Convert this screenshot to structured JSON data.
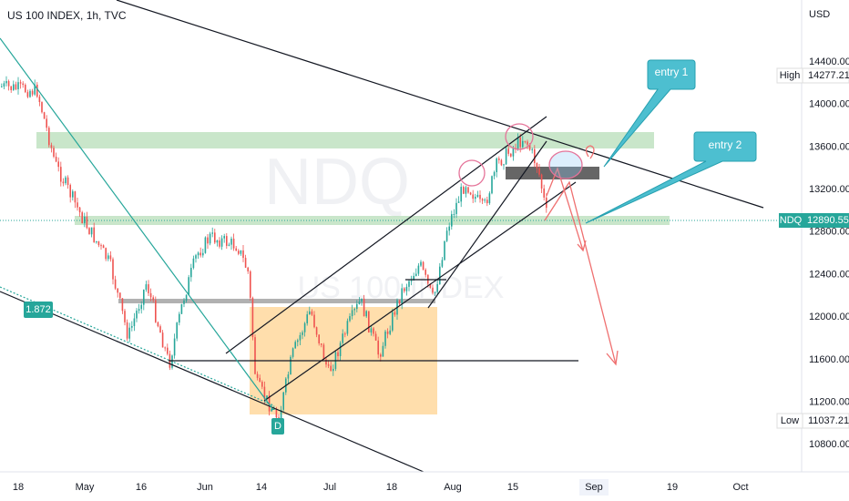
{
  "header": {
    "title": "US 100 INDEX, 1h, TVC"
  },
  "watermark": {
    "symbol": "NDQ",
    "name": "US 100 INDEX"
  },
  "price_axis": {
    "currency": "USD",
    "labels": [
      "14400.00",
      "14000.00",
      "13600.00",
      "13200.00",
      "12800.00",
      "12400.00",
      "12000.00",
      "11600.00",
      "11200.00",
      "10800.00"
    ],
    "high": {
      "label": "High",
      "value": "14277.21"
    },
    "low": {
      "label": "Low",
      "value": "11037.21"
    },
    "current": {
      "symbol": "NDQ",
      "value": "12890.55"
    }
  },
  "time_axis": {
    "labels": [
      "18",
      "May",
      "16",
      "Jun",
      "14",
      "Jul",
      "18",
      "Aug",
      "15",
      "Sep",
      "19",
      "Oct"
    ]
  },
  "annotations": {
    "entry_1": "entry 1",
    "entry_2": "entry 2",
    "fib": "1.872",
    "point": "D"
  }
}
